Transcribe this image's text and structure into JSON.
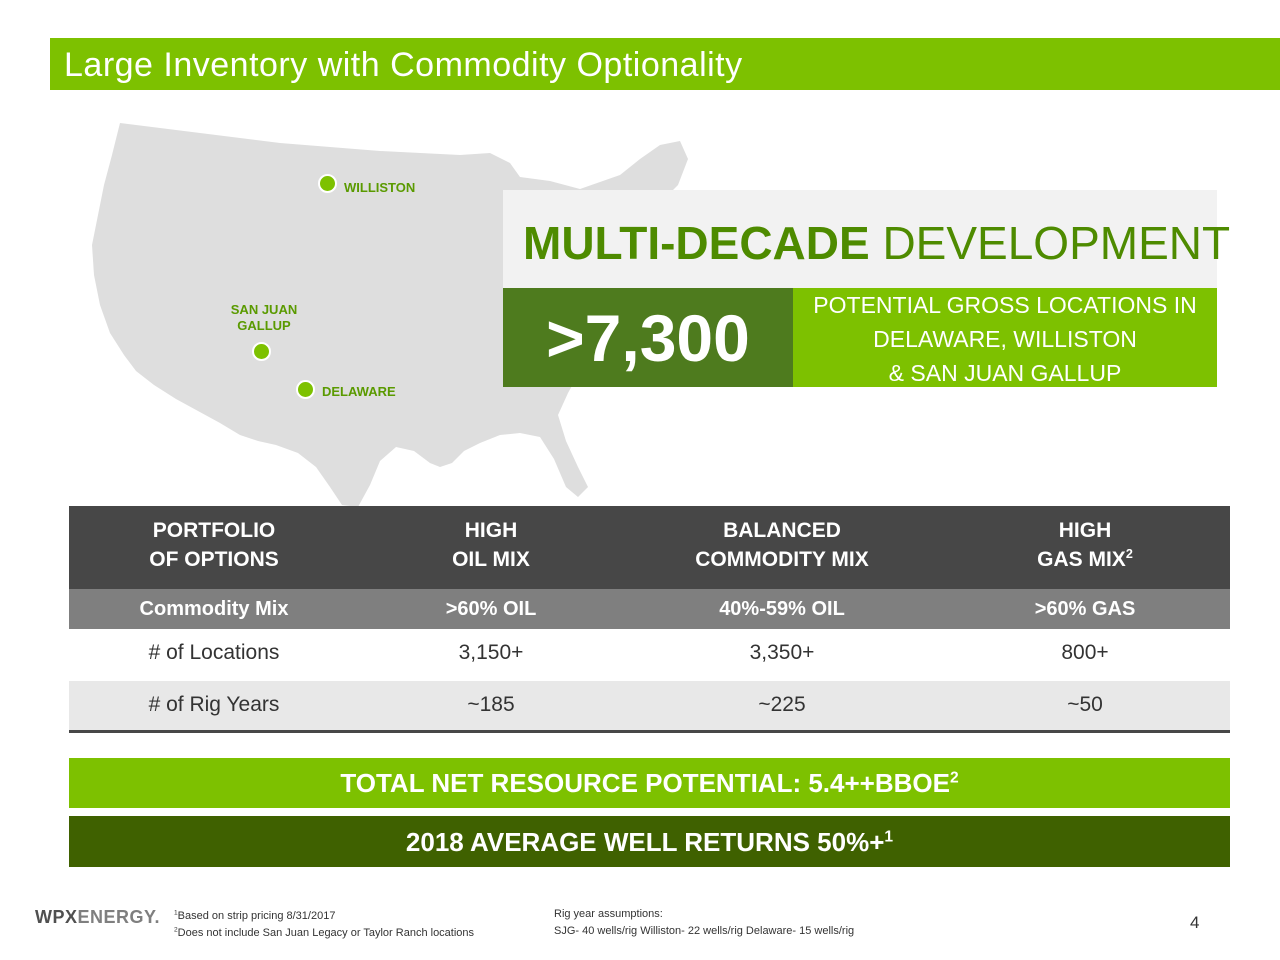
{
  "title": "Large Inventory with Commodity Optionality",
  "colors": {
    "accent_green": "#7dc100",
    "dark_green": "#4e7b1e",
    "deep_green": "#3f6100",
    "header_gray": "#474747",
    "sub_gray": "#7f7f7f"
  },
  "map": {
    "pins": [
      {
        "label": "WILLISTON"
      },
      {
        "label_line1": "SAN JUAN",
        "label_line2": "GALLUP"
      },
      {
        "label": "DELAWARE"
      }
    ]
  },
  "headline": {
    "bold": "MULTI-DECADE",
    "regular": "DEVELOPMENT"
  },
  "big_number": ">7,300",
  "locations_text": [
    "POTENTIAL GROSS LOCATIONS IN",
    "DELAWARE, WILLISTON",
    "& SAN JUAN GALLUP"
  ],
  "table": {
    "headers": [
      {
        "line1": "PORTFOLIO",
        "line2": "OF OPTIONS",
        "sup": ""
      },
      {
        "line1": "HIGH",
        "line2": "OIL MIX",
        "sup": ""
      },
      {
        "line1": "BALANCED",
        "line2": "COMMODITY MIX",
        "sup": ""
      },
      {
        "line1": "HIGH",
        "line2": "GAS MIX",
        "sup": "2"
      }
    ],
    "commodity_row": [
      "Commodity Mix",
      ">60% OIL",
      "40%-59% OIL",
      ">60% GAS"
    ],
    "locations_row": [
      "# of Locations",
      "3,150+",
      "3,350+",
      "800+"
    ],
    "rig_years_row": [
      "# of Rig Years",
      "~185",
      "~225",
      "~50"
    ]
  },
  "total_bar": {
    "text": "TOTAL NET RESOURCE POTENTIAL:  5.4++BBOE",
    "sup": "2"
  },
  "returns_bar": {
    "text": "2018 AVERAGE WELL RETURNS 50%+",
    "sup": "1"
  },
  "footer": {
    "logo_wpx": "WPX",
    "logo_energy": "ENERGY.",
    "fn1_sup": "1",
    "fn1": "Based on strip pricing 8/31/2017",
    "fn2_sup": "2",
    "fn2": "Does not include San Juan Legacy or Taylor Ranch locations",
    "rig_title": "Rig year assumptions:",
    "rig_detail": "SJG- 40 wells/rig  Williston- 22 wells/rig  Delaware- 15 wells/rig",
    "page": "4"
  }
}
